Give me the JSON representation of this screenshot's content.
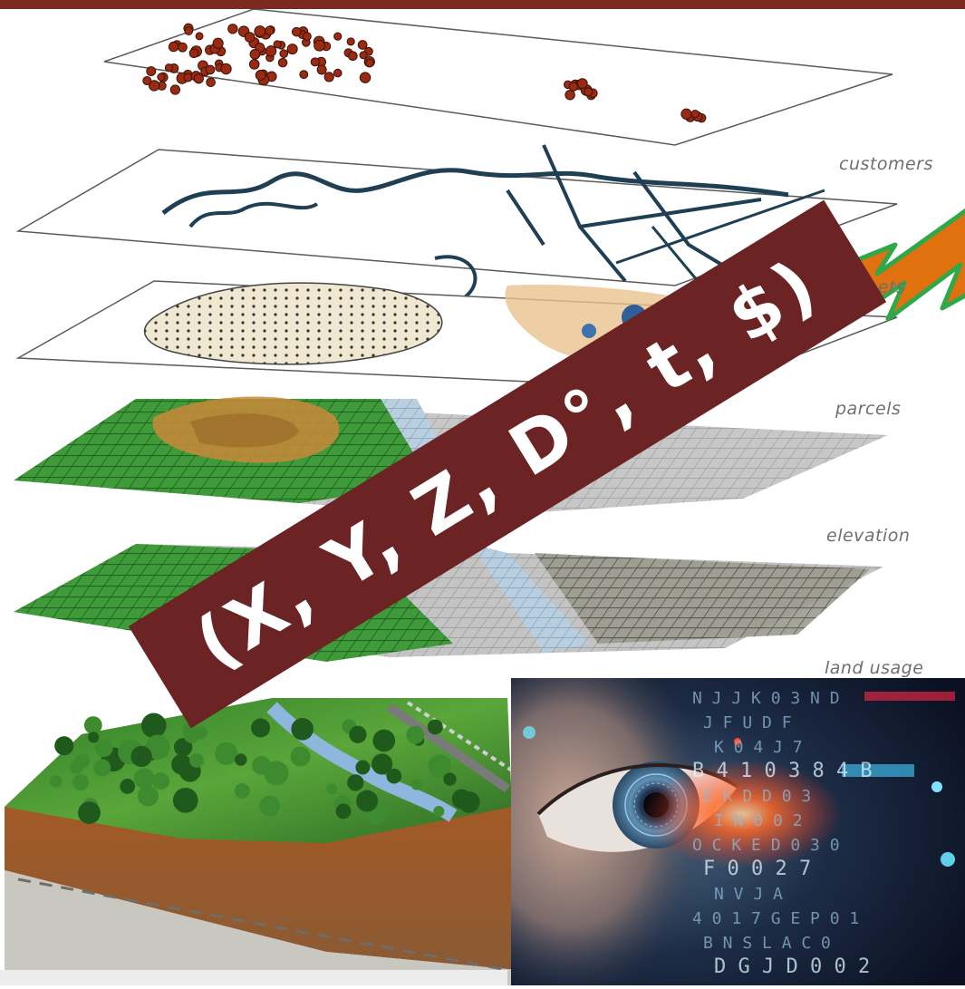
{
  "colors": {
    "top_bar": "#7b2a22",
    "banner": "#6b2323",
    "banner_text": "#ffffff",
    "arrow_fill": "#e1700f",
    "arrow_stroke": "#2fa84a",
    "label_text": "#6f6f6f",
    "points": "#9a2a12"
  },
  "layers": {
    "customers": "customers",
    "streets": "streets",
    "parcels": "parcels",
    "elevation": "elevation",
    "land_usage": "land usage"
  },
  "banner": {
    "text": "(X, Y, Z, D°, t, $)"
  },
  "photo": {
    "glyph_rows": [
      "N J J K 0 3 N D",
      "J F U D F",
      "K 0 4 J 7",
      "B 4 1 0 3 8 4 B",
      "E K D D 0 3",
      "I N 0 0 2",
      "O C K E D 0 3 0",
      "F 0 0 2 7",
      "N V J A",
      "4 0 1 7 G E P 0 1",
      "B N S L A C 0",
      "D G J D 0 0 2"
    ]
  },
  "icons": {
    "arrow": "lightning-arrow-icon",
    "eye": "eye-icon"
  }
}
